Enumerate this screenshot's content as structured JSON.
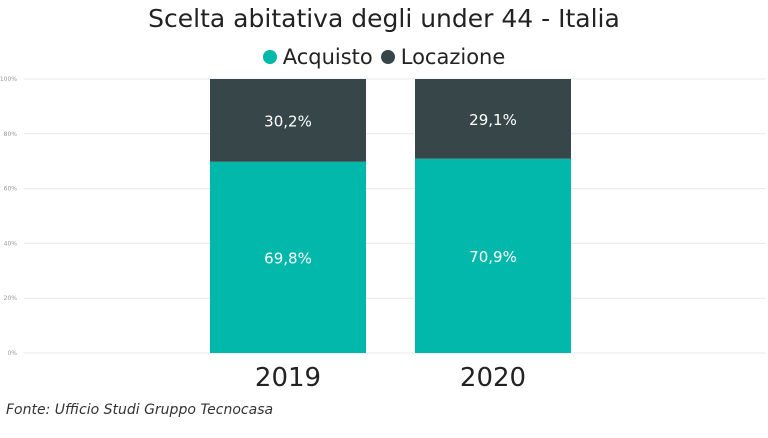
{
  "chart_data": {
    "type": "bar",
    "stacked": true,
    "title": "Scelta abitativa degli under 44 - Italia",
    "categories": [
      "2019",
      "2020"
    ],
    "series": [
      {
        "name": "Acquisto",
        "values": [
          69.8,
          70.9
        ],
        "labels": [
          "69,8%",
          "70,9%"
        ],
        "color": "#01b8aa"
      },
      {
        "name": "Locazione",
        "values": [
          30.2,
          29.1
        ],
        "labels": [
          "30,2%",
          "29,1%"
        ],
        "color": "#374649"
      }
    ],
    "ylim": [
      0,
      100
    ],
    "yticks": [
      "0%",
      "20%",
      "40%",
      "60%",
      "80%",
      "100%"
    ],
    "grid": true,
    "legend_position": "top-center"
  },
  "source_note": "Fonte: Ufficio Studi Gruppo Tecnocasa"
}
